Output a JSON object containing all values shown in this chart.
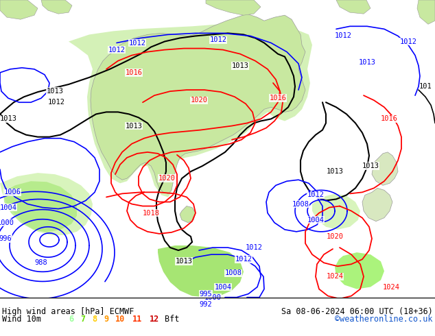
{
  "title_left": "High wind areas [hPa] ECMWF",
  "title_right": "Sa 08-06-2024 06:00 UTC (18+36)",
  "label_left": "Wind 10m",
  "legend_values": [
    "6",
    "7",
    "8",
    "9",
    "10",
    "11",
    "12"
  ],
  "legend_colors": [
    "#99ff99",
    "#66dd00",
    "#ffcc00",
    "#ff9900",
    "#ff6600",
    "#ff3300",
    "#cc0000"
  ],
  "legend_suffix": "Bft",
  "watermark": "©weatheronline.co.uk",
  "land_color": "#c8e8a0",
  "land_edge": "#aaaaaa",
  "ocean_color": "#e8e8e8",
  "wind6_color": "#c8f0a0",
  "wind7_color": "#a8e878",
  "wind8_color": "#88d848",
  "wind9_color": "#68c828",
  "bottom_bar_color": "#ffffff",
  "fig_width": 6.34,
  "fig_height": 4.9,
  "dpi": 100
}
